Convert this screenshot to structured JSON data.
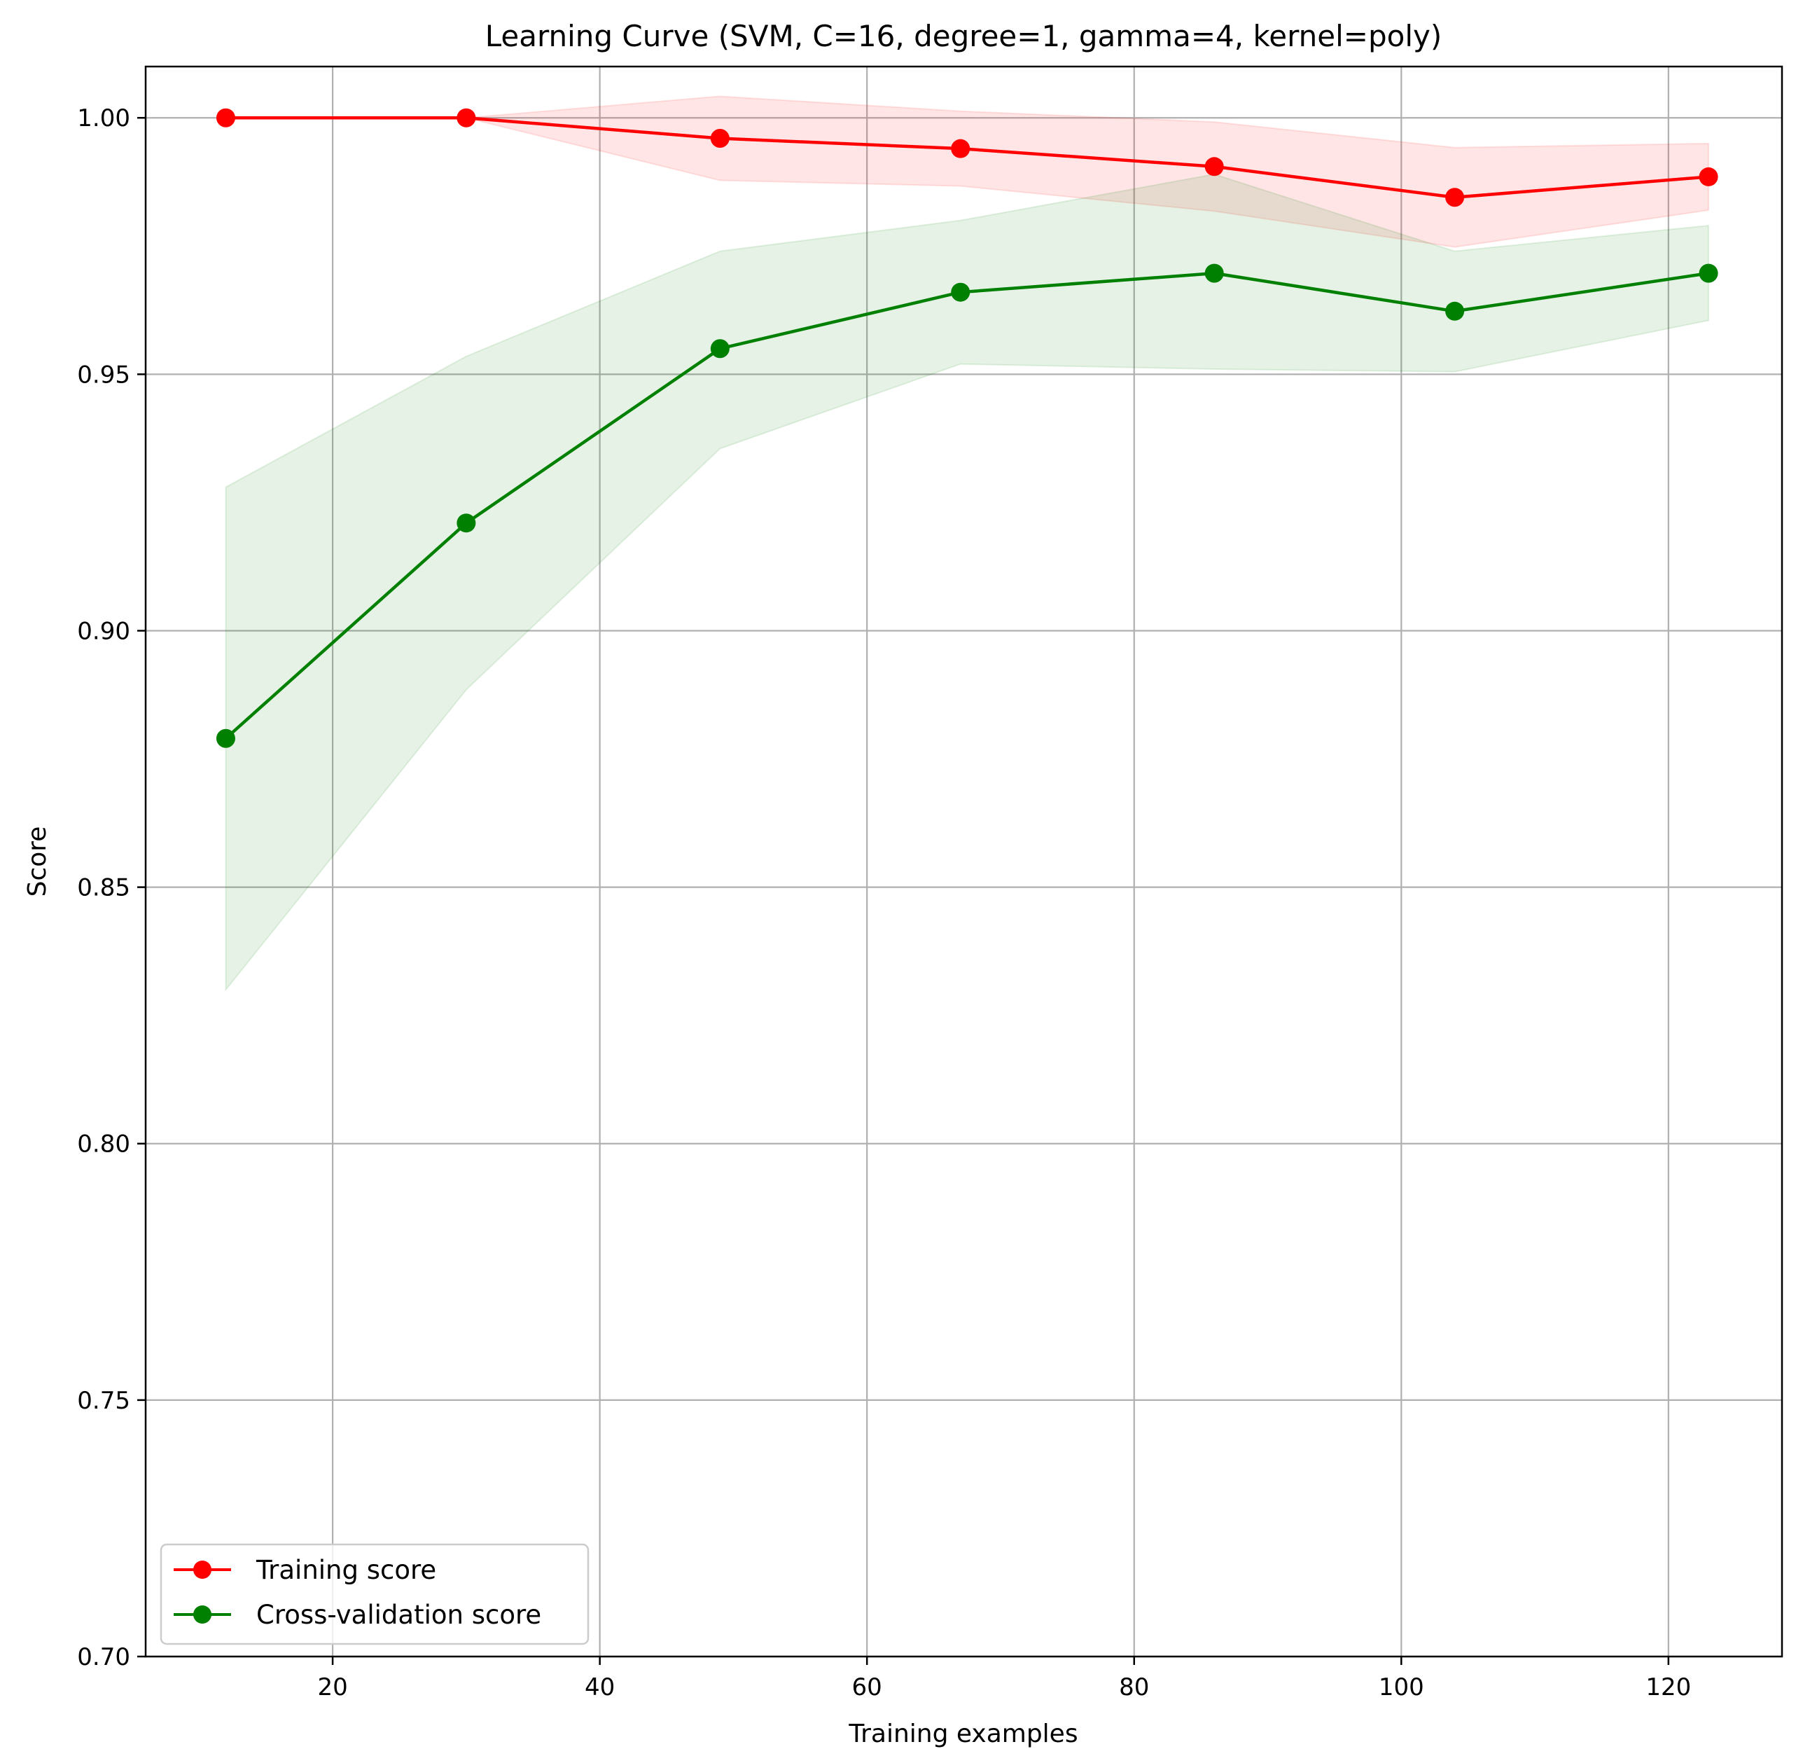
{
  "chart_data": {
    "type": "line",
    "title": "Learning Curve (SVM, C=16, degree=1, gamma=4, kernel=poly)",
    "xlabel": "Training examples",
    "ylabel": "Score",
    "xlim": [
      6,
      128.5
    ],
    "ylim": [
      0.7,
      1.01
    ],
    "xticks": [
      20,
      40,
      60,
      80,
      100,
      120
    ],
    "yticks": [
      0.7,
      0.75,
      0.8,
      0.85,
      0.9,
      0.95,
      1.0
    ],
    "xtick_labels": [
      "20",
      "40",
      "60",
      "80",
      "100",
      "120"
    ],
    "ytick_labels": [
      "0.70",
      "0.75",
      "0.80",
      "0.85",
      "0.90",
      "0.95",
      "1.00"
    ],
    "grid": true,
    "legend_position": "lower-left",
    "x": [
      12,
      30,
      49,
      67,
      86,
      104,
      123
    ],
    "series": [
      {
        "name": "Training score",
        "color": "#ff0000",
        "values": [
          1.0,
          1.0,
          0.996,
          0.994,
          0.9905,
          0.9845,
          0.9885
        ],
        "band_upper": [
          1.0,
          1.0,
          1.0042,
          1.0013,
          0.9992,
          0.9942,
          0.995
        ],
        "band_lower": [
          1.0,
          1.0,
          0.9878,
          0.9867,
          0.9818,
          0.9748,
          0.982
        ],
        "band_color": "#ff0000"
      },
      {
        "name": "Cross-validation score",
        "color": "#008000",
        "values": [
          0.879,
          0.921,
          0.955,
          0.966,
          0.9697,
          0.9623,
          0.9697
        ],
        "band_upper": [
          0.928,
          0.9535,
          0.974,
          0.98,
          0.989,
          0.974,
          0.979
        ],
        "band_lower": [
          0.83,
          0.8885,
          0.9355,
          0.952,
          0.951,
          0.9505,
          0.9605
        ],
        "band_color": "#008000"
      }
    ]
  }
}
